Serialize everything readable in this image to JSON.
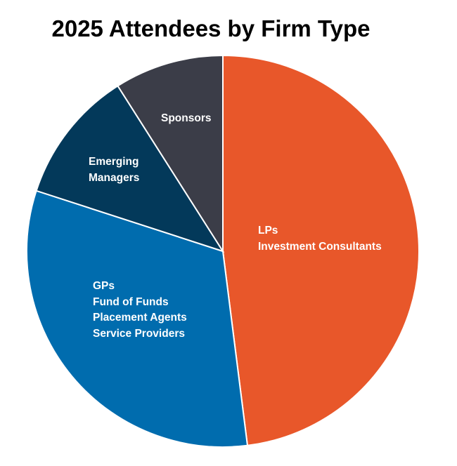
{
  "chart_data": {
    "type": "pie",
    "title": "2025 Attendees by Firm Type",
    "start_angle_deg": 0,
    "direction": "clockwise",
    "slices": [
      {
        "label_lines": [
          "LPs",
          "Investment Consultants"
        ],
        "value": 48,
        "color": "#E8572A"
      },
      {
        "label_lines": [
          "GPs",
          "Fund of Funds",
          "Placement Agents",
          "Service Providers"
        ],
        "value": 32,
        "color": "#006CAE"
      },
      {
        "label_lines": [
          "Emerging",
          "Managers"
        ],
        "value": 11,
        "color": "#03395A"
      },
      {
        "label_lines": [
          "Sponsors"
        ],
        "value": 9,
        "color": "#3B3D48"
      }
    ]
  }
}
